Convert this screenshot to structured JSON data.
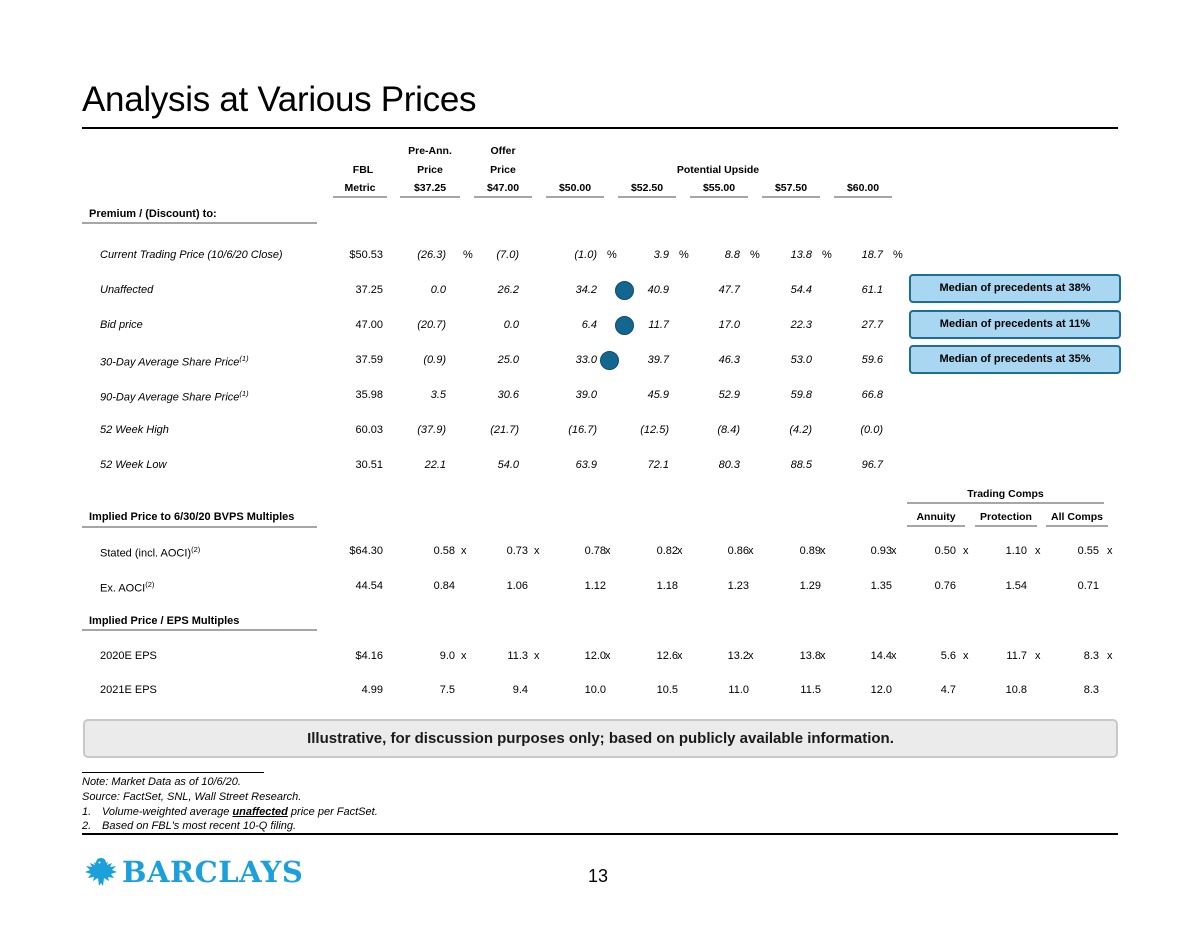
{
  "title": "Analysis at Various Prices",
  "columns": {
    "fbl": [
      "FBL",
      "Metric"
    ],
    "preann": [
      "Pre-Ann.",
      "Price",
      "$37.25"
    ],
    "offer": [
      "Offer",
      "Price",
      "$47.00"
    ],
    "upside_title": "Potential Upside",
    "upside": [
      "$50.00",
      "$52.50",
      "$55.00",
      "$57.50",
      "$60.00"
    ]
  },
  "premium": {
    "heading": "Premium / (Discount) to:",
    "rows": [
      {
        "label": "Current Trading Price (10/6/20 Close)",
        "sup": "",
        "metric": "$50.53",
        "vals": [
          "(26.3)",
          "(7.0)",
          "(1.0)",
          "3.9",
          "8.8",
          "13.8",
          "18.7"
        ],
        "sfx": [
          "%",
          "",
          "%",
          "%",
          "%",
          "%",
          "%"
        ]
      },
      {
        "label": "Unaffected",
        "sup": "",
        "metric": "37.25",
        "vals": [
          "0.0",
          "26.2",
          "34.2",
          "40.9",
          "47.7",
          "54.4",
          "61.1"
        ]
      },
      {
        "label": "Bid price",
        "sup": "",
        "metric": "47.00",
        "vals": [
          "(20.7)",
          "0.0",
          "6.4",
          "11.7",
          "17.0",
          "22.3",
          "27.7"
        ]
      },
      {
        "label": "30-Day Average Share Price",
        "sup": "(1)",
        "metric": "37.59",
        "vals": [
          "(0.9)",
          "25.0",
          "33.0",
          "39.7",
          "46.3",
          "53.0",
          "59.6"
        ]
      },
      {
        "label": "90-Day Average Share Price",
        "sup": "(1)",
        "metric": "35.98",
        "vals": [
          "3.5",
          "30.6",
          "39.0",
          "45.9",
          "52.9",
          "59.8",
          "66.8"
        ]
      },
      {
        "label": "52 Week High",
        "sup": "",
        "metric": "60.03",
        "vals": [
          "(37.9)",
          "(21.7)",
          "(16.7)",
          "(12.5)",
          "(8.4)",
          "(4.2)",
          "(0.0)"
        ]
      },
      {
        "label": "52 Week Low",
        "sup": "",
        "metric": "30.51",
        "vals": [
          "22.1",
          "54.0",
          "63.9",
          "72.1",
          "80.3",
          "88.5",
          "96.7"
        ]
      }
    ],
    "callouts": [
      "Median of precedents at 38%",
      "Median of precedents at 11%",
      "Median of precedents at 35%"
    ]
  },
  "trading_comps": {
    "title": "Trading Comps",
    "cols": [
      "Annuity",
      "Protection",
      "All Comps"
    ]
  },
  "bvps": {
    "heading": "Implied Price to 6/30/20 BVPS Multiples",
    "rows": [
      {
        "label": "Stated (incl. AOCI)",
        "sup": "(2)",
        "metric": "$64.30",
        "vals": [
          "0.58",
          "0.73",
          "0.78",
          "0.82",
          "0.86",
          "0.89",
          "0.93"
        ],
        "comps": [
          "0.50",
          "1.10",
          "0.55"
        ],
        "sfx": "x"
      },
      {
        "label": "Ex. AOCI",
        "sup": "(2)",
        "metric": "44.54",
        "vals": [
          "0.84",
          "1.06",
          "1.12",
          "1.18",
          "1.23",
          "1.29",
          "1.35"
        ],
        "comps": [
          "0.76",
          "1.54",
          "0.71"
        ],
        "sfx": ""
      }
    ]
  },
  "eps": {
    "heading": "Implied Price / EPS Multiples",
    "rows": [
      {
        "label": "2020E EPS",
        "sup": "",
        "metric": "$4.16",
        "vals": [
          "9.0",
          "11.3",
          "12.0",
          "12.6",
          "13.2",
          "13.8",
          "14.4"
        ],
        "comps": [
          "5.6",
          "11.7",
          "8.3"
        ],
        "sfx": "x"
      },
      {
        "label": "2021E EPS",
        "sup": "",
        "metric": "4.99",
        "vals": [
          "7.5",
          "9.4",
          "10.0",
          "10.5",
          "11.0",
          "11.5",
          "12.0"
        ],
        "comps": [
          "4.7",
          "10.8",
          "8.3"
        ],
        "sfx": ""
      }
    ]
  },
  "disclaimer": "Illustrative, for discussion purposes only; based on publicly available information.",
  "footnotes": {
    "note": "Note: Market Data as of 10/6/20.",
    "source": "Source: FactSet, SNL, Wall Street Research.",
    "fn1_num": "1.",
    "fn1_pre": "Volume-weighted average ",
    "fn1_em": "unaffected",
    "fn1_post": " price per FactSet.",
    "fn2_num": "2.",
    "fn2": "Based on FBL's most recent 10-Q filing."
  },
  "logo": {
    "text": "BARCLAYS",
    "icon": "eagle-icon"
  },
  "page_number": "13",
  "colors": {
    "dot": "#136690",
    "callout_fill": "#a9d6f0",
    "callout_border": "#1c6f95",
    "logo": "#1ba0dc"
  }
}
